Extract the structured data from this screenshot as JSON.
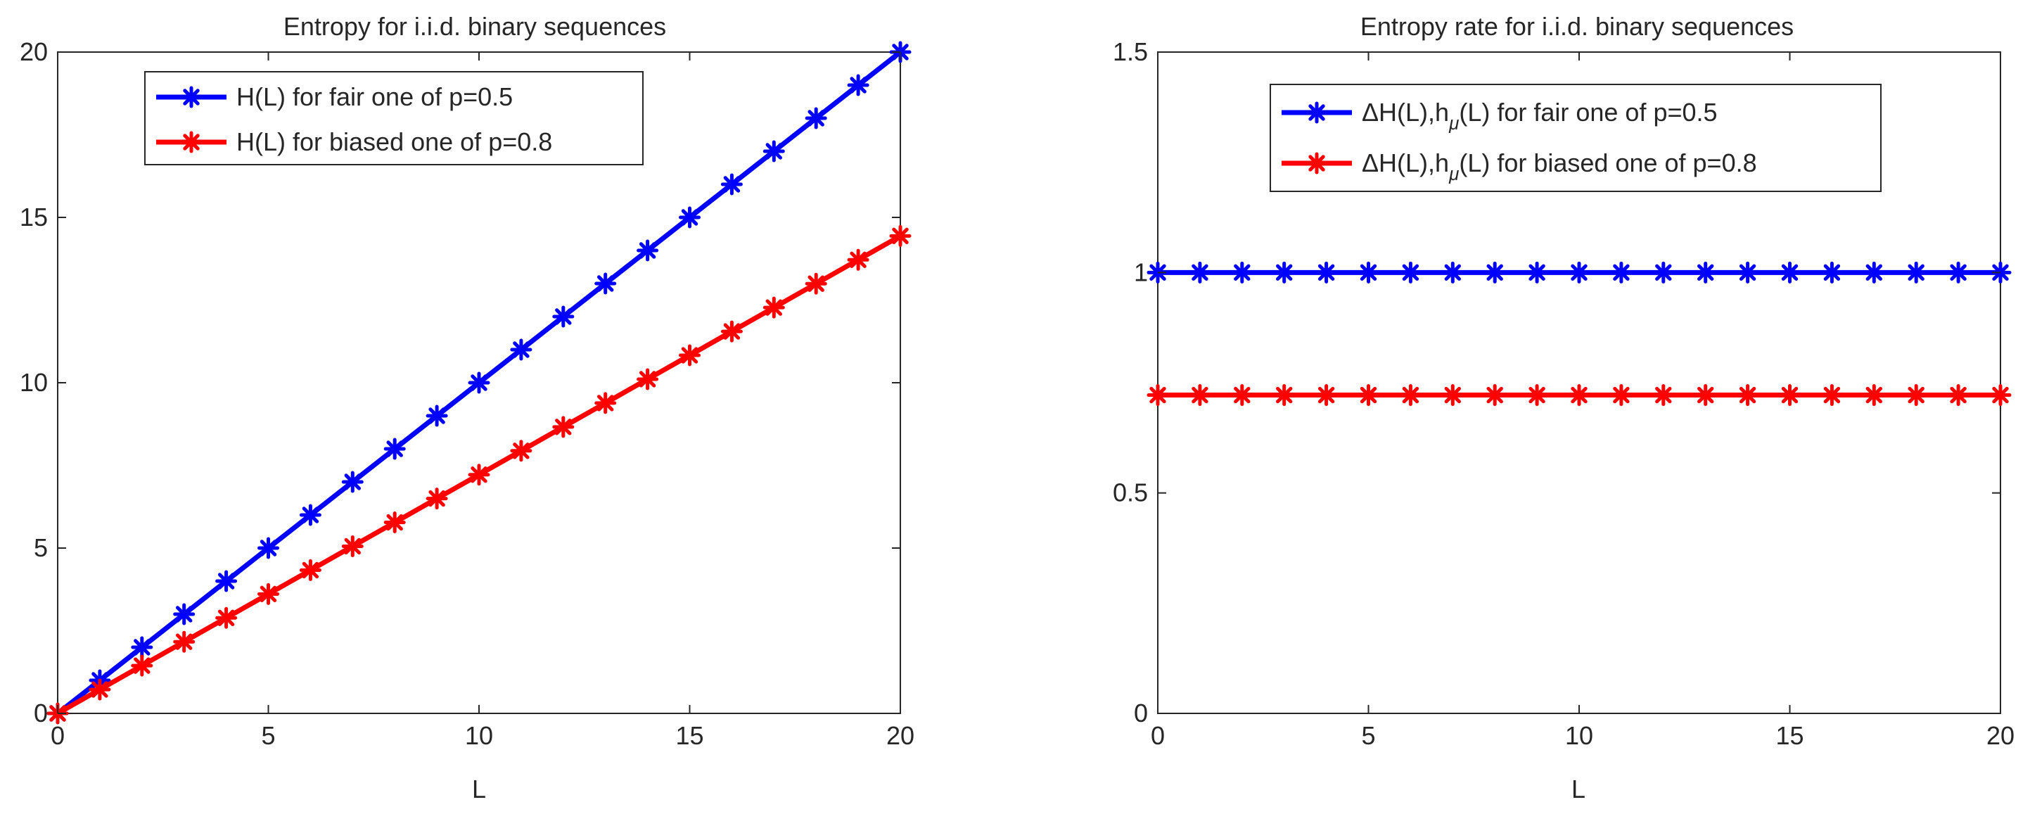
{
  "chart_data": [
    {
      "type": "line",
      "title": "Entropy for i.i.d. binary sequences",
      "xlabel": "L",
      "ylabel": "",
      "xlim": [
        0,
        20
      ],
      "ylim": [
        0,
        20
      ],
      "xticks": [
        "0",
        "5",
        "10",
        "15",
        "20"
      ],
      "yticks": [
        "0",
        "5",
        "10",
        "15",
        "20"
      ],
      "legend_position": "top-left",
      "x": [
        0,
        1,
        2,
        3,
        4,
        5,
        6,
        7,
        8,
        9,
        10,
        11,
        12,
        13,
        14,
        15,
        16,
        17,
        18,
        19,
        20
      ],
      "series": [
        {
          "name": "H(L) for fair one of p=0.5",
          "color": "#0000ff",
          "marker": "asterisk",
          "values": [
            0,
            1,
            2,
            3,
            4,
            5,
            6,
            7,
            8,
            9,
            10,
            11,
            12,
            13,
            14,
            15,
            16,
            17,
            18,
            19,
            20
          ]
        },
        {
          "name": "H(L) for biased one of p=0.8",
          "color": "#ff0000",
          "marker": "asterisk",
          "values": [
            0,
            0.722,
            1.444,
            2.166,
            2.888,
            3.61,
            4.332,
            5.054,
            5.776,
            6.498,
            7.219,
            7.941,
            8.663,
            9.385,
            10.107,
            10.829,
            11.551,
            12.273,
            12.995,
            13.717,
            14.439
          ]
        }
      ]
    },
    {
      "type": "line",
      "title": "Entropy rate for i.i.d. binary sequences",
      "xlabel": "L",
      "ylabel": "",
      "xlim": [
        0,
        20
      ],
      "ylim": [
        0,
        1.5
      ],
      "xticks": [
        "0",
        "5",
        "10",
        "15",
        "20"
      ],
      "yticks": [
        "0",
        "0.5",
        "1",
        "1.5"
      ],
      "legend_position": "top-center",
      "x": [
        0,
        1,
        2,
        3,
        4,
        5,
        6,
        7,
        8,
        9,
        10,
        11,
        12,
        13,
        14,
        15,
        16,
        17,
        18,
        19,
        20
      ],
      "series": [
        {
          "name_main": "ΔH(L),h",
          "name_sub": "μ",
          "name_rest": "(L) for fair one of p=0.5",
          "color": "#0000ff",
          "marker": "asterisk",
          "values": [
            1,
            1,
            1,
            1,
            1,
            1,
            1,
            1,
            1,
            1,
            1,
            1,
            1,
            1,
            1,
            1,
            1,
            1,
            1,
            1,
            1
          ]
        },
        {
          "name_main": "ΔH(L),h",
          "name_sub": "μ",
          "name_rest": "(L) for biased one of p=0.8",
          "color": "#ff0000",
          "marker": "asterisk",
          "values": [
            0.722,
            0.722,
            0.722,
            0.722,
            0.722,
            0.722,
            0.722,
            0.722,
            0.722,
            0.722,
            0.722,
            0.722,
            0.722,
            0.722,
            0.722,
            0.722,
            0.722,
            0.722,
            0.722,
            0.722,
            0.722
          ]
        }
      ]
    }
  ]
}
